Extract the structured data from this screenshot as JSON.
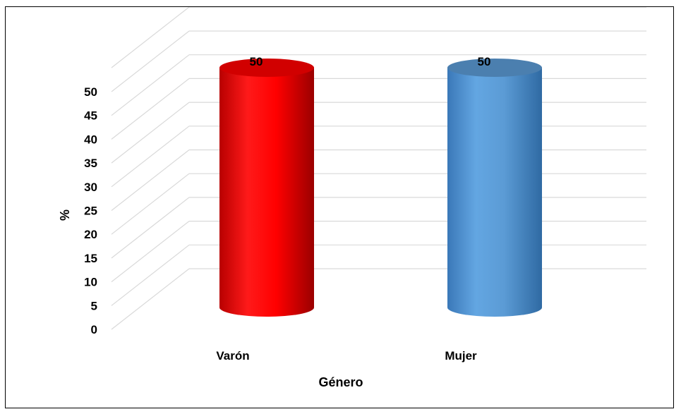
{
  "chart_data": {
    "type": "bar",
    "style": "3d-cylinder",
    "categories": [
      "Varón",
      "Mujer"
    ],
    "values": [
      50,
      50
    ],
    "data_labels": [
      "50",
      "50"
    ],
    "colors": [
      "#ff0000",
      "#5b9bd5"
    ],
    "title": "",
    "xlabel": "Género",
    "ylabel": "%",
    "ylim": [
      0,
      50
    ],
    "ytick_step": 5,
    "yticks": [
      "0",
      "5",
      "10",
      "15",
      "20",
      "25",
      "30",
      "35",
      "40",
      "45",
      "50"
    ],
    "grid": true,
    "legend": false
  }
}
